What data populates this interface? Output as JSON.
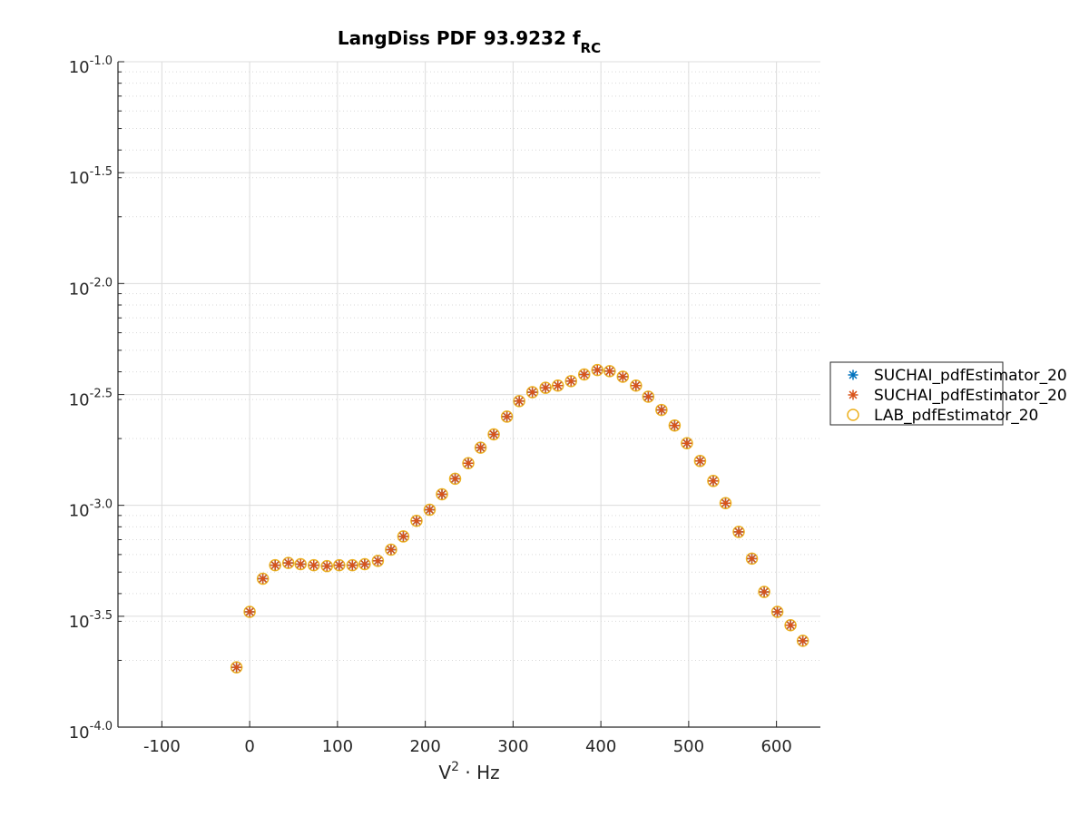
{
  "chart_data": {
    "type": "scatter",
    "title": "LangDiss PDF 93.9232 f",
    "title_subscript": "RC",
    "xlabel_base": "V",
    "xlabel_sup": "2",
    "xlabel_rest": " · Hz",
    "ylabel": "",
    "x_scale": "linear",
    "y_scale": "log",
    "xlim": [
      -150,
      650
    ],
    "ylim": [
      0.0001,
      0.1
    ],
    "x_ticks": [
      -100,
      0,
      100,
      200,
      300,
      400,
      500,
      600
    ],
    "x_tick_labels": [
      "-100",
      "0",
      "100",
      "200",
      "300",
      "400",
      "500",
      "600"
    ],
    "y_ticks": [
      0.0001,
      0.000316,
      0.001,
      0.00316,
      0.01,
      0.0316,
      0.1
    ],
    "y_tick_base": "10",
    "y_tick_exponents": [
      "-4.0",
      "-3.5",
      "-3.0",
      "-2.5",
      "-2.0",
      "-1.5",
      "-1.0"
    ],
    "grid": true,
    "minor_grid": true,
    "legend_position": "outside-right",
    "x": [
      -15,
      0,
      15,
      29,
      44,
      58,
      73,
      88,
      102,
      117,
      131,
      146,
      161,
      175,
      190,
      205,
      219,
      234,
      249,
      263,
      278,
      293,
      307,
      322,
      337,
      351,
      366,
      381,
      396,
      410,
      425,
      440,
      454,
      469,
      484,
      498,
      513,
      528,
      542,
      557,
      572,
      586,
      601,
      616,
      630
    ],
    "y": [
      0.000186,
      0.000331,
      0.000467,
      0.000537,
      0.00055,
      0.000543,
      0.000537,
      0.000532,
      0.000537,
      0.000537,
      0.000543,
      0.000562,
      0.000631,
      0.000724,
      0.000851,
      0.000955,
      0.001122,
      0.001318,
      0.001549,
      0.00182,
      0.002089,
      0.002512,
      0.002951,
      0.003236,
      0.003388,
      0.003467,
      0.003631,
      0.00389,
      0.004074,
      0.004027,
      0.003802,
      0.003467,
      0.00309,
      0.002692,
      0.002291,
      0.001905,
      0.001585,
      0.001288,
      0.001023,
      0.000759,
      0.000575,
      0.000407,
      0.000331,
      0.000288,
      0.000245
    ],
    "series": [
      {
        "name": "SUCHAI_pdfEstimator_20",
        "marker": "asterisk",
        "color": "#0072BD"
      },
      {
        "name": "SUCHAI_pdfEstimator_20",
        "marker": "asterisk",
        "color": "#D95319"
      },
      {
        "name": "LAB_pdfEstimator_20",
        "marker": "circle",
        "color": "#EDB120"
      }
    ]
  }
}
